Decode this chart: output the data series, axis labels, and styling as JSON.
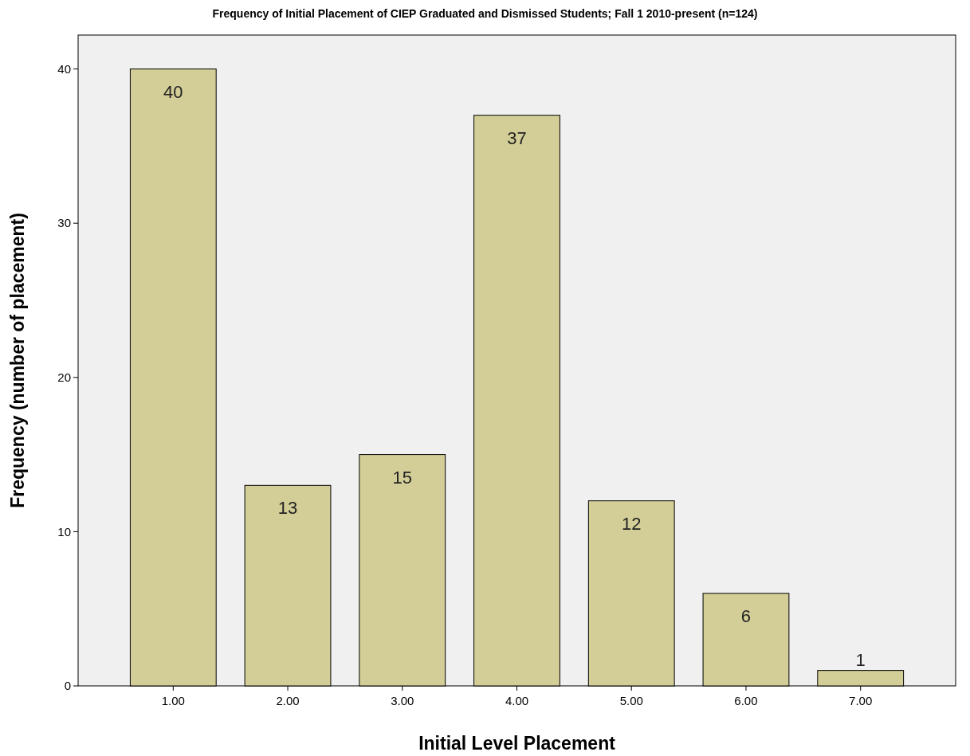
{
  "chart_data": {
    "type": "bar",
    "title": "Frequency of Initial Placement of CIEP Graduated and Dismissed Students; Fall 1 2010-present (n=124)",
    "xlabel": "Initial Level Placement",
    "ylabel": "Frequency (number of placement)",
    "categories": [
      "1.00",
      "2.00",
      "3.00",
      "4.00",
      "5.00",
      "6.00",
      "7.00"
    ],
    "values": [
      40,
      13,
      15,
      37,
      12,
      6,
      1
    ],
    "color": "#d3ce97",
    "ylim": [
      0,
      42.2
    ],
    "yticks": [
      0,
      10,
      20,
      30,
      40
    ],
    "data_labels": true
  }
}
